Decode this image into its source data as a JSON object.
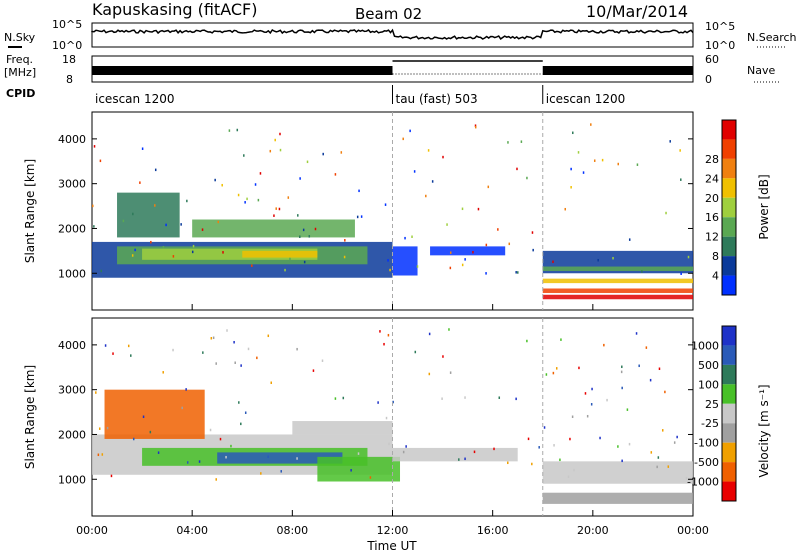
{
  "header": {
    "station": "Kapuskasing (fitACF)",
    "beam": "Beam 02",
    "date": "10/Mar/2014"
  },
  "strip_labels": {
    "nsky": "N.Sky",
    "nsky_ticks": [
      "10^5",
      "10^0"
    ],
    "nsearch": "N.Search",
    "nsearch_ticks": [
      "10^5",
      "10^0"
    ],
    "freq_line1": "Freq.",
    "freq_line2": "[MHz]",
    "freq_ticks": [
      "18",
      "8"
    ],
    "nave": "Nave",
    "nave_ticks": [
      "60",
      "0"
    ],
    "cpid": "CPID"
  },
  "cpid_segments": [
    {
      "label": "icescan 1200",
      "start_h": 0,
      "end_h": 12
    },
    {
      "label": "tau (fast) 503",
      "start_h": 12,
      "end_h": 18
    },
    {
      "label": "icescan 1200",
      "start_h": 18,
      "end_h": 24
    }
  ],
  "colors": {
    "power": [
      "#0030ff",
      "#0a3a9a",
      "#2e7a5a",
      "#5aa852",
      "#9fcf3e",
      "#f0c000",
      "#f08010",
      "#f04000",
      "#e00000"
    ],
    "velocity": [
      "#1e32c8",
      "#2a5ab8",
      "#2e7a5a",
      "#48c028",
      "#c8c8c8",
      "#a0a0a0",
      "#f0a000",
      "#f06000",
      "#e80000"
    ]
  },
  "chart_data": [
    {
      "type": "heatmap",
      "name": "power",
      "xlabel": "",
      "ylabel": "Slant Range [km]",
      "x_range_h": [
        0,
        24
      ],
      "ylim": [
        180,
        4600
      ],
      "y_ticks": [
        1000,
        2000,
        3000,
        4000
      ],
      "colorbar_label": "Power [dB]",
      "colorbar_ticks": [
        "4",
        "8",
        "12",
        "16",
        "20",
        "24",
        "28"
      ],
      "regions": [
        {
          "t0": 0,
          "t1": 12,
          "r0": 900,
          "r1": 1700,
          "level": 1
        },
        {
          "t0": 1,
          "t1": 11,
          "r0": 1200,
          "r1": 1600,
          "level": 3
        },
        {
          "t0": 2,
          "t1": 9,
          "r0": 1300,
          "r1": 1550,
          "level": 4
        },
        {
          "t0": 6,
          "t1": 9,
          "r0": 1350,
          "r1": 1500,
          "level": 5
        },
        {
          "t0": 1,
          "t1": 3.5,
          "r0": 1800,
          "r1": 2800,
          "level": 2
        },
        {
          "t0": 4,
          "t1": 10.5,
          "r0": 1800,
          "r1": 2200,
          "level": 3
        },
        {
          "t0": 12,
          "t1": 13,
          "r0": 950,
          "r1": 1600,
          "level": 0
        },
        {
          "t0": 13.5,
          "t1": 16.5,
          "r0": 1400,
          "r1": 1600,
          "level": 0
        },
        {
          "t0": 18,
          "t1": 24,
          "r0": 1000,
          "r1": 1500,
          "level": 1
        },
        {
          "t0": 18,
          "t1": 24,
          "r0": 1050,
          "r1": 1150,
          "level": 3
        },
        {
          "t0": 18,
          "t1": 24,
          "r0": 780,
          "r1": 880,
          "level": 5
        },
        {
          "t0": 18,
          "t1": 24,
          "r0": 560,
          "r1": 660,
          "level": 7
        },
        {
          "t0": 18,
          "t1": 24,
          "r0": 420,
          "r1": 520,
          "level": 8
        }
      ]
    },
    {
      "type": "heatmap",
      "name": "velocity",
      "xlabel": "Time UT",
      "ylabel": "Slant Range [km]",
      "x_range_h": [
        0,
        24
      ],
      "x_ticks": [
        "00:00",
        "04:00",
        "08:00",
        "12:00",
        "16:00",
        "20:00",
        "00:00"
      ],
      "ylim": [
        180,
        4600
      ],
      "y_ticks": [
        1000,
        2000,
        3000,
        4000
      ],
      "colorbar_label": "Velocity [m s⁻¹]",
      "colorbar_ticks": [
        "1000",
        "500",
        "100",
        "25",
        "-25",
        "-100",
        "-500",
        "-1000"
      ],
      "regions": [
        {
          "t0": 0,
          "t1": 12,
          "r0": 1100,
          "r1": 2000,
          "level": 4
        },
        {
          "t0": 2,
          "t1": 11,
          "r0": 1300,
          "r1": 1700,
          "level": 3
        },
        {
          "t0": 5,
          "t1": 10,
          "r0": 1350,
          "r1": 1600,
          "level": 1
        },
        {
          "t0": 9,
          "t1": 12.3,
          "r0": 950,
          "r1": 1500,
          "level": 3
        },
        {
          "t0": 0.5,
          "t1": 4.5,
          "r0": 1900,
          "r1": 3000,
          "level": 7
        },
        {
          "t0": 8,
          "t1": 12,
          "r0": 2000,
          "r1": 2300,
          "level": 4
        },
        {
          "t0": 12,
          "t1": 17,
          "r0": 1400,
          "r1": 1700,
          "level": 4
        },
        {
          "t0": 18,
          "t1": 24,
          "r0": 900,
          "r1": 1400,
          "level": 4
        },
        {
          "t0": 18,
          "t1": 24,
          "r0": 450,
          "r1": 700,
          "level": 5
        }
      ]
    }
  ]
}
